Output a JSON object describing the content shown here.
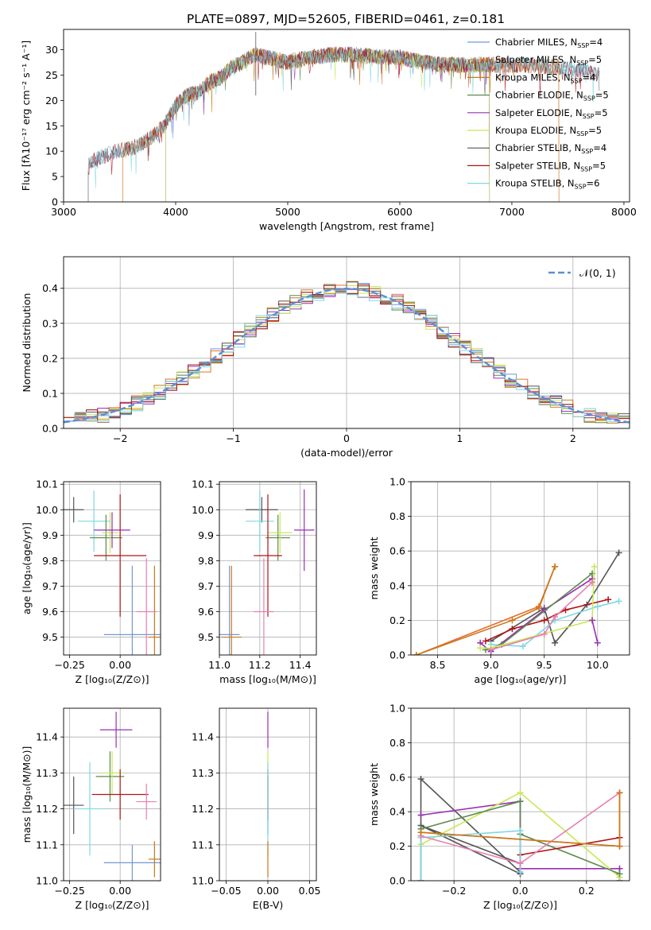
{
  "figure_title": "PLATE=0897, MJD=52605, FIBERID=0461, z=0.181",
  "colors": {
    "Chabrier MILES": "#7396d6",
    "Salpeter MILES": "#e96c2e",
    "Kroupa MILES": "#c87a1a",
    "Chabrier ELODIE": "#5e8a4e",
    "Salpeter ELODIE": "#9a2fb5",
    "Kroupa ELODIE": "#c8e856",
    "Chabrier STELIB": "#555555",
    "Salpeter STELIB": "#b01515",
    "Kroupa STELIB": "#7fd8e3",
    "pink": "#e87fb0",
    "normal_curve": "#5b8fd6"
  },
  "chart_data": [
    {
      "id": "spectrum",
      "type": "line",
      "xlabel": "wavelength [Angstrom, rest frame]",
      "ylabel": "Flux [fλ10⁻¹⁷ erg cm⁻² s⁻¹ A⁻¹]",
      "xlim": [
        3000,
        8050
      ],
      "ylim": [
        0,
        34
      ],
      "xticks": [
        3000,
        4000,
        5000,
        6000,
        7000,
        8000
      ],
      "yticks": [
        0,
        5,
        10,
        15,
        20,
        25,
        30
      ],
      "grid": false,
      "legend_position": "right",
      "spectrum_envelope": {
        "x": [
          3220,
          3300,
          3400,
          3500,
          3600,
          3700,
          3800,
          3900,
          3950,
          4000,
          4100,
          4200,
          4300,
          4400,
          4500,
          4600,
          4700,
          4800,
          4900,
          5000,
          5200,
          5400,
          5600,
          5800,
          6000,
          6200,
          6400,
          6600,
          6800,
          7000,
          7200,
          7400,
          7600,
          7780
        ],
        "y": [
          7.5,
          8.5,
          9.5,
          10.0,
          10.5,
          11.5,
          13.0,
          15.0,
          17.0,
          19.0,
          21.0,
          21.5,
          23.5,
          24.5,
          26.5,
          27.5,
          29.0,
          28.5,
          28.0,
          27.5,
          28.5,
          29.0,
          29.0,
          28.5,
          28.5,
          27.5,
          27.0,
          27.0,
          27.0,
          27.0,
          27.0,
          26.5,
          26.0,
          25.0
        ]
      },
      "series": [
        {
          "name": "Chabrier MILES",
          "nssp": "4",
          "x_range": [
            3220,
            7780
          ]
        },
        {
          "name": "Salpeter MILES",
          "nssp": "5",
          "x_range": [
            3530,
            7420
          ]
        },
        {
          "name": "Kroupa MILES",
          "nssp": "4",
          "x_range": [
            3530,
            7420
          ]
        },
        {
          "name": "Chabrier ELODIE",
          "nssp": "5",
          "x_range": [
            3910,
            6800
          ]
        },
        {
          "name": "Salpeter ELODIE",
          "nssp": "5",
          "x_range": [
            3910,
            6800
          ]
        },
        {
          "name": "Kroupa ELODIE",
          "nssp": "5",
          "x_range": [
            3910,
            6800
          ]
        },
        {
          "name": "Chabrier STELIB",
          "nssp": "4",
          "x_range": [
            3220,
            7780
          ]
        },
        {
          "name": "Salpeter STELIB",
          "nssp": "5",
          "x_range": [
            3220,
            7780
          ]
        },
        {
          "name": "Kroupa STELIB",
          "nssp": "6",
          "x_range": [
            3220,
            7780
          ]
        }
      ]
    },
    {
      "id": "residuals",
      "type": "line",
      "xlabel": "(data-model)/error",
      "ylabel": "Normed distribution",
      "xlim": [
        -2.5,
        2.5
      ],
      "ylim": [
        0,
        0.49
      ],
      "xticks": [
        -2,
        -1,
        0,
        1,
        2
      ],
      "yticks": [
        0.0,
        0.1,
        0.2,
        0.3,
        0.4
      ],
      "grid": true,
      "legend_position": "top-right",
      "legend": [
        "𝒩(0, 1)"
      ],
      "hist_bin_width": 0.1,
      "hist_start": -2.5,
      "hist_series_count": 9
    },
    {
      "id": "age_vs_Z",
      "type": "scatter",
      "xlabel": "Z [log₁₀(Z/Z⊙)]",
      "ylabel": "age  [log₁₀(age/yr)]",
      "xlim": [
        -0.28,
        0.2
      ],
      "ylim": [
        9.43,
        10.11
      ],
      "xticks": [
        -0.25,
        0.0
      ],
      "yticks": [
        9.5,
        9.6,
        9.7,
        9.8,
        9.9,
        10.0,
        10.1
      ],
      "grid": true,
      "points": [
        {
          "series": "Chabrier STELIB",
          "x": -0.23,
          "y": 10.0,
          "ex": 0.05,
          "ey": 0.05
        },
        {
          "series": "Kroupa STELIB",
          "x": -0.13,
          "y": 9.955,
          "ex": 0.08,
          "ey": 0.12
        },
        {
          "series": "Chabrier ELODIE",
          "x": -0.07,
          "y": 9.89,
          "ex": 0.08,
          "ey": 0.09
        },
        {
          "series": "Kroupa ELODIE",
          "x": -0.05,
          "y": 9.91,
          "ex": 0.04,
          "ey": 0.08
        },
        {
          "series": "Salpeter ELODIE",
          "x": -0.04,
          "y": 9.92,
          "ex": 0.09,
          "ey": 0.07
        },
        {
          "series": "Salpeter STELIB",
          "x": 0.0,
          "y": 9.82,
          "ex": 0.13,
          "ey": 0.24
        },
        {
          "series": "Chabrier MILES",
          "x": 0.06,
          "y": 9.51,
          "ex": 0.14,
          "ey": 0.27
        },
        {
          "series": "Kroupa MILES",
          "x": 0.17,
          "y": 9.5,
          "ex": 0.03,
          "ey": 0.28
        },
        {
          "series": "pink",
          "x": 0.13,
          "y": 9.6,
          "ex": 0.05,
          "ey": 0.21
        }
      ]
    },
    {
      "id": "age_vs_mass",
      "type": "scatter",
      "xlabel": "mass [log₁₀(M/M⊙)]",
      "ylabel": "",
      "xlim": [
        11.0,
        11.48
      ],
      "ylim": [
        9.43,
        10.11
      ],
      "xticks": [
        11.0,
        11.2,
        11.4
      ],
      "yticks": [
        9.5,
        9.6,
        9.7,
        9.8,
        9.9,
        10.0,
        10.1
      ],
      "grid": true,
      "points": [
        {
          "series": "Chabrier STELIB",
          "x": 11.21,
          "y": 10.0,
          "ex": 0.08,
          "ey": 0.05
        },
        {
          "series": "Kroupa STELIB",
          "x": 11.2,
          "y": 9.955,
          "ex": 0.07,
          "ey": 0.12
        },
        {
          "series": "Chabrier ELODIE",
          "x": 11.29,
          "y": 9.89,
          "ex": 0.06,
          "ey": 0.09
        },
        {
          "series": "Kroupa ELODIE",
          "x": 11.3,
          "y": 9.91,
          "ex": 0.06,
          "ey": 0.08
        },
        {
          "series": "Salpeter ELODIE",
          "x": 11.42,
          "y": 9.92,
          "ex": 0.05,
          "ey": 0.16
        },
        {
          "series": "Salpeter STELIB",
          "x": 11.24,
          "y": 9.82,
          "ex": 0.07,
          "ey": 0.24
        },
        {
          "series": "Chabrier MILES",
          "x": 11.05,
          "y": 9.51,
          "ex": 0.05,
          "ey": 0.27
        },
        {
          "series": "Kroupa MILES",
          "x": 11.06,
          "y": 9.5,
          "ex": 0.05,
          "ey": 0.28
        },
        {
          "series": "pink",
          "x": 11.22,
          "y": 9.6,
          "ex": 0.05,
          "ey": 0.21
        }
      ]
    },
    {
      "id": "massweight_vs_age",
      "type": "line",
      "xlabel": "age  [log₁₀(age/yr)]",
      "ylabel": "mass weight",
      "xlim": [
        8.25,
        10.3
      ],
      "ylim": [
        0,
        1.0
      ],
      "xticks": [
        8.5,
        9.0,
        9.5,
        10.0
      ],
      "yticks": [
        0.0,
        0.2,
        0.4,
        0.6,
        0.8,
        1.0
      ],
      "grid": true,
      "series": [
        {
          "name": "Salpeter MILES",
          "x": [
            8.3,
            9.45,
            9.6
          ],
          "y": [
            0.0,
            0.28,
            0.51
          ]
        },
        {
          "name": "Kroupa MILES",
          "x": [
            8.3,
            9.2,
            9.45,
            9.6
          ],
          "y": [
            0.0,
            0.2,
            0.27,
            0.51
          ]
        },
        {
          "name": "Chabrier STELIB",
          "x": [
            9.0,
            9.5,
            9.6,
            9.9,
            10.2
          ],
          "y": [
            0.08,
            0.27,
            0.07,
            0.29,
            0.59
          ]
        },
        {
          "name": "Salpeter STELIB",
          "x": [
            8.95,
            9.2,
            9.5,
            9.7,
            10.1
          ],
          "y": [
            0.08,
            0.15,
            0.2,
            0.26,
            0.32
          ]
        },
        {
          "name": "Kroupa STELIB",
          "x": [
            9.0,
            9.3,
            9.6,
            10.0,
            10.2
          ],
          "y": [
            0.06,
            0.05,
            0.2,
            0.28,
            0.31
          ]
        },
        {
          "name": "Salpeter ELODIE",
          "x": [
            8.9,
            9.0,
            9.5,
            9.95
          ],
          "y": [
            0.07,
            0.02,
            0.26,
            0.44
          ]
        },
        {
          "name": "Chabrier ELODIE",
          "x": [
            8.95,
            9.1,
            9.95
          ],
          "y": [
            0.03,
            0.06,
            0.47
          ]
        },
        {
          "name": "Kroupa ELODIE",
          "x": [
            8.9,
            9.0,
            9.95,
            9.97
          ],
          "y": [
            0.04,
            0.04,
            0.2,
            0.51
          ]
        },
        {
          "name": "pink",
          "x": [
            9.0,
            9.5,
            9.6,
            9.95
          ],
          "y": [
            0.03,
            0.12,
            0.22,
            0.42
          ]
        },
        {
          "name": "Salpeter ELODIE",
          "x": [
            9.95,
            10.0
          ],
          "y": [
            0.2,
            0.07
          ]
        }
      ]
    },
    {
      "id": "mass_vs_Z",
      "type": "scatter",
      "xlabel": "Z [log₁₀(Z/Z⊙)]",
      "ylabel": "mass [log₁₀(M/M⊙)]",
      "xlim": [
        -0.28,
        0.2
      ],
      "ylim": [
        11.0,
        11.48
      ],
      "xticks": [
        -0.25,
        0.0
      ],
      "yticks": [
        11.0,
        11.1,
        11.2,
        11.3,
        11.4
      ],
      "grid": true,
      "points": [
        {
          "series": "Chabrier STELIB",
          "x": -0.23,
          "y": 11.21,
          "ex": 0.05,
          "ey": 0.08
        },
        {
          "series": "Kroupa STELIB",
          "x": -0.15,
          "y": 11.2,
          "ex": 0.08,
          "ey": 0.13
        },
        {
          "series": "Chabrier ELODIE",
          "x": -0.05,
          "y": 11.29,
          "ex": 0.07,
          "ey": 0.07
        },
        {
          "series": "Kroupa ELODIE",
          "x": -0.04,
          "y": 11.3,
          "ex": 0.05,
          "ey": 0.06
        },
        {
          "series": "Salpeter ELODIE",
          "x": -0.02,
          "y": 11.42,
          "ex": 0.08,
          "ey": 0.05
        },
        {
          "series": "Salpeter STELIB",
          "x": 0.0,
          "y": 11.24,
          "ex": 0.14,
          "ey": 0.07
        },
        {
          "series": "Chabrier MILES",
          "x": 0.06,
          "y": 11.05,
          "ex": 0.14,
          "ey": 0.05
        },
        {
          "series": "Kroupa MILES",
          "x": 0.17,
          "y": 11.06,
          "ex": 0.03,
          "ey": 0.05
        },
        {
          "series": "pink",
          "x": 0.13,
          "y": 11.22,
          "ex": 0.05,
          "ey": 0.05
        }
      ]
    },
    {
      "id": "mass_vs_ebv",
      "type": "scatter",
      "xlabel": "E(B-V)",
      "ylabel": "",
      "xlim": [
        -0.058,
        0.058
      ],
      "ylim": [
        11.0,
        11.48
      ],
      "xticks": [
        -0.05,
        0.0,
        0.05
      ],
      "yticks": [
        11.0,
        11.1,
        11.2,
        11.3,
        11.4
      ],
      "grid": true,
      "points": [
        {
          "series": "Salpeter ELODIE",
          "x": 0.0,
          "y": 11.42,
          "ex": 0.0,
          "ey": 0.05
        },
        {
          "series": "Kroupa ELODIE",
          "x": 0.0,
          "y": 11.3,
          "ex": 0.0,
          "ey": 0.06
        },
        {
          "series": "Salpeter STELIB",
          "x": 0.0,
          "y": 11.24,
          "ex": 0.0,
          "ey": 0.07
        },
        {
          "series": "Chabrier STELIB",
          "x": 0.0,
          "y": 11.21,
          "ex": 0.0,
          "ey": 0.08
        },
        {
          "series": "Kroupa STELIB",
          "x": 0.0,
          "y": 11.2,
          "ex": 0.0,
          "ey": 0.13
        },
        {
          "series": "Kroupa MILES",
          "x": 0.0,
          "y": 11.06,
          "ex": 0.0,
          "ey": 0.05
        }
      ]
    },
    {
      "id": "massweight_vs_Z",
      "type": "line",
      "xlabel": "Z [log₁₀(Z/Z⊙)]",
      "ylabel": "mass weight",
      "xlim": [
        -0.33,
        0.33
      ],
      "ylim": [
        0,
        1.0
      ],
      "xticks": [
        -0.2,
        0.0,
        0.2
      ],
      "yticks": [
        0.0,
        0.2,
        0.4,
        0.6,
        0.8,
        1.0
      ],
      "grid": true,
      "series": [
        {
          "name": "Chabrier STELIB",
          "x": [
            -0.3,
            -0.3,
            0.0,
            0.0,
            -0.3,
            0.0
          ],
          "y": [
            0.0,
            0.59,
            0.05,
            0.04,
            0.32,
            0.1
          ]
        },
        {
          "name": "Salpeter ELODIE",
          "x": [
            -0.3,
            0.0,
            0.0,
            0.3,
            0.3
          ],
          "y": [
            0.38,
            0.46,
            0.07,
            0.07,
            0.0
          ]
        },
        {
          "name": "Kroupa ELODIE",
          "x": [
            -0.3,
            0.0,
            0.3
          ],
          "y": [
            0.21,
            0.51,
            0.02
          ]
        },
        {
          "name": "Chabrier ELODIE",
          "x": [
            -0.3,
            0.0,
            0.0,
            0.3
          ],
          "y": [
            0.3,
            0.46,
            0.27,
            0.04
          ]
        },
        {
          "name": "Salpeter STELIB",
          "x": [
            0.0,
            0.3
          ],
          "y": [
            0.15,
            0.25
          ]
        },
        {
          "name": "Kroupa STELIB",
          "x": [
            -0.3,
            -0.3,
            0.0,
            0.0
          ],
          "y": [
            0.0,
            0.25,
            0.29,
            0.05
          ]
        },
        {
          "name": "pink",
          "x": [
            -0.3,
            0.0,
            0.3
          ],
          "y": [
            0.26,
            0.1,
            0.51
          ]
        },
        {
          "name": "Salpeter MILES",
          "x": [
            -0.3,
            0.3,
            0.3
          ],
          "y": [
            0.28,
            0.2,
            0.51
          ]
        },
        {
          "name": "Kroupa MILES",
          "x": [
            -0.3,
            0.3,
            0.3
          ],
          "y": [
            0.28,
            0.2,
            0.51
          ]
        }
      ]
    }
  ]
}
